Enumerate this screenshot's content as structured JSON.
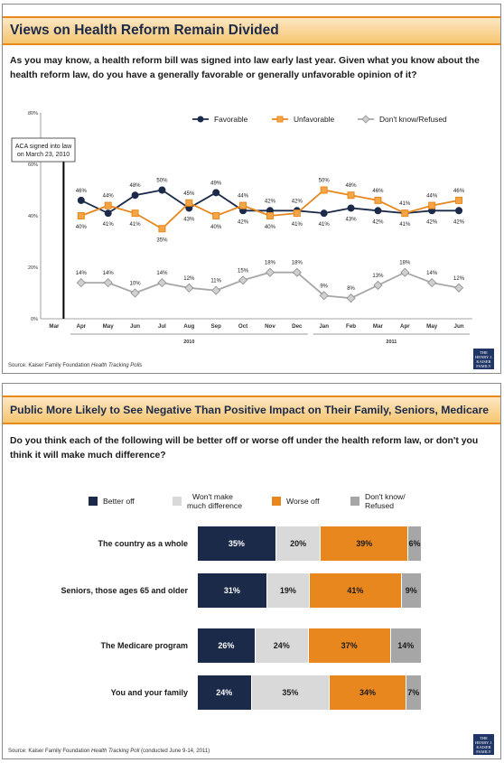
{
  "slide1": {
    "title": "Views on Health Reform Remain Divided",
    "question": "As you may know, a health reform bill was signed into law early last year. Given what you know about the health reform law, do you have a generally favorable or generally unfavorable opinion of it?",
    "annotation_line1": "ACA signed into law",
    "annotation_line2": "on March 23, 2010",
    "source_prefix": "Source: Kaiser Family Foundation",
    "source_italic": "Health Tracking Polls",
    "logo": [
      "THE HENRY J.",
      "KAISER",
      "FAMILY",
      "FOUNDATION"
    ]
  },
  "chart_data": [
    {
      "type": "line",
      "categories": [
        "Mar",
        "Apr",
        "May",
        "Jun",
        "Jul",
        "Aug",
        "Sep",
        "Oct",
        "Nov",
        "Dec",
        "Jan",
        "Feb",
        "Mar",
        "Apr",
        "May",
        "Jun"
      ],
      "year_groups": [
        {
          "label": "2010",
          "from": 1,
          "to": 9
        },
        {
          "label": "2011",
          "from": 10,
          "to": 15
        }
      ],
      "yticks": [
        "0%",
        "20%",
        "40%",
        "60%",
        "80%"
      ],
      "ylim": [
        0,
        80
      ],
      "series": [
        {
          "name": "Favorable",
          "color": "#1c2a4a",
          "marker": "circle",
          "values": [
            null,
            46,
            41,
            48,
            50,
            43,
            49,
            42,
            42,
            42,
            41,
            43,
            42,
            41,
            42,
            42
          ],
          "labels": [
            null,
            "46%",
            "41%",
            "48%",
            "50%",
            "43%",
            "49%",
            "42%",
            "42%",
            "42%",
            "41%",
            "43%",
            "42%",
            "41%",
            "42%",
            "42%"
          ]
        },
        {
          "name": "Unfavorable",
          "color": "#e8871e",
          "marker": "square",
          "values": [
            null,
            40,
            44,
            41,
            35,
            45,
            40,
            44,
            40,
            41,
            50,
            48,
            46,
            41,
            44,
            46
          ],
          "labels": [
            null,
            "40%",
            "44%",
            "41%",
            "35%",
            "45%",
            "40%",
            "44%",
            "40%",
            "41%",
            "50%",
            "48%",
            "46%",
            "41%",
            "44%",
            "46%"
          ]
        },
        {
          "name": "Don't know/Refused",
          "color": "#a8a8a8",
          "marker": "diamond",
          "values": [
            null,
            14,
            14,
            10,
            14,
            12,
            11,
            15,
            18,
            18,
            9,
            8,
            13,
            18,
            14,
            12
          ],
          "labels": [
            null,
            "14%",
            "14%",
            "10%",
            "14%",
            "12%",
            "11%",
            "15%",
            "18%",
            "18%",
            "9%",
            "8%",
            "13%",
            "18%",
            "14%",
            "12%"
          ]
        }
      ]
    },
    {
      "type": "bar",
      "orientation": "horizontal-stacked",
      "categories": [
        "The country as a whole",
        "Seniors, those ages 65 and older",
        "The Medicare program",
        "You and your family"
      ],
      "series": [
        {
          "name": "Better off",
          "color": "#1c2a4a",
          "values": [
            35,
            31,
            26,
            24
          ]
        },
        {
          "name": "Won't make much difference",
          "color": "#d9d9d9",
          "values": [
            20,
            19,
            24,
            35
          ]
        },
        {
          "name": "Worse off",
          "color": "#e8871e",
          "values": [
            39,
            41,
            37,
            34
          ]
        },
        {
          "name": "Don't know/ Refused",
          "color": "#a6a6a6",
          "values": [
            6,
            9,
            14,
            7
          ]
        }
      ]
    }
  ],
  "slide2": {
    "title": "Public More Likely to See Negative Than Positive Impact on Their Family, Seniors, Medicare",
    "question": "Do you think each of the following will be better off or worse off under the health reform law, or don't you think it will make much difference?",
    "legend": [
      {
        "line1": "Better off",
        "line2": ""
      },
      {
        "line1": "Won't make",
        "line2": "much difference"
      },
      {
        "line1": "Worse off",
        "line2": ""
      },
      {
        "line1": "Don't know/",
        "line2": "Refused"
      }
    ],
    "source_prefix": "Source: Kaiser Family Foundation",
    "source_italic": "Health Tracking Poll",
    "source_suffix": "(conducted June 9-14, 2011)",
    "logo": [
      "THE HENRY J.",
      "KAISER",
      "FAMILY",
      "FOUNDATION"
    ]
  }
}
